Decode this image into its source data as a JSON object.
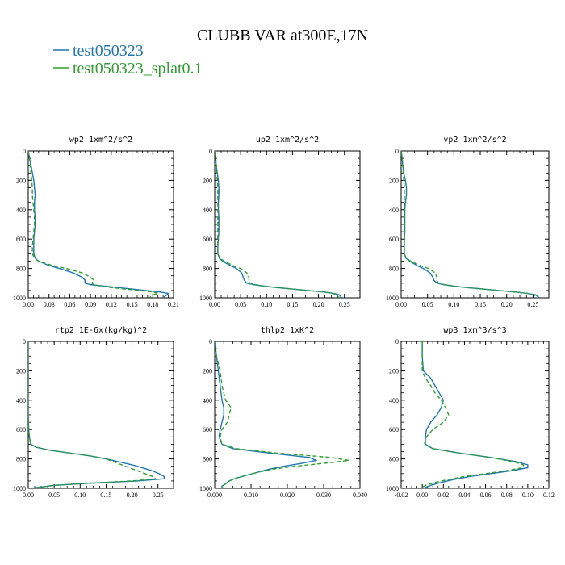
{
  "title": "CLUBB VAR at300E,17N",
  "legend": [
    {
      "label": "test050323",
      "color": "#1f77b4",
      "dash": "solid"
    },
    {
      "label": "test050323_splat0.1",
      "color": "#2ca02c",
      "dash": "dashed"
    }
  ],
  "chart_data": [
    {
      "type": "line",
      "title": "wp2   1xm^2/s^2",
      "xlim": [
        0,
        0.21
      ],
      "xticks": [
        0,
        0.03,
        0.06,
        0.09,
        0.12,
        0.15,
        0.18,
        0.21
      ],
      "xtick_labels": [
        "0.00",
        "0.03",
        "0.06",
        "0.09",
        "0.12",
        "0.15",
        "0.18",
        "0.21"
      ],
      "ylim": [
        0,
        1000
      ],
      "yticks": [
        0,
        200,
        400,
        600,
        800,
        1000
      ],
      "y": [
        0,
        50,
        100,
        150,
        200,
        250,
        300,
        350,
        400,
        450,
        500,
        550,
        600,
        650,
        700,
        730,
        750,
        780,
        800,
        830,
        860,
        880,
        900,
        910,
        920,
        930,
        940,
        950,
        960,
        970,
        980,
        1000
      ],
      "series": [
        {
          "name": "test050323",
          "values": [
            0.0,
            0.002,
            0.004,
            0.006,
            0.008,
            0.009,
            0.01,
            0.009,
            0.009,
            0.01,
            0.01,
            0.009,
            0.008,
            0.008,
            0.008,
            0.01,
            0.015,
            0.03,
            0.045,
            0.065,
            0.078,
            0.082,
            0.082,
            0.09,
            0.11,
            0.13,
            0.15,
            0.17,
            0.19,
            0.203,
            0.2,
            0.195
          ]
        },
        {
          "name": "test050323_splat0.1",
          "values": [
            0.0,
            0.002,
            0.003,
            0.004,
            0.005,
            0.006,
            0.006,
            0.007,
            0.008,
            0.009,
            0.009,
            0.008,
            0.007,
            0.006,
            0.006,
            0.009,
            0.015,
            0.035,
            0.055,
            0.078,
            0.09,
            0.095,
            0.092,
            0.095,
            0.105,
            0.12,
            0.14,
            0.16,
            0.18,
            0.188,
            0.18,
            0.175
          ]
        }
      ]
    },
    {
      "type": "line",
      "title": "up2   1xm^2/s^2",
      "xlim": [
        0,
        0.28
      ],
      "xticks": [
        0,
        0.05,
        0.1,
        0.15,
        0.2,
        0.25
      ],
      "xtick_labels": [
        "0.00",
        "0.05",
        "0.10",
        "0.15",
        "0.20",
        "0.25"
      ],
      "ylim": [
        0,
        1000
      ],
      "yticks": [
        0,
        200,
        400,
        600,
        800,
        1000
      ],
      "y": [
        0,
        50,
        100,
        150,
        200,
        250,
        300,
        350,
        400,
        450,
        500,
        550,
        600,
        650,
        700,
        730,
        750,
        780,
        800,
        830,
        860,
        880,
        900,
        910,
        920,
        930,
        940,
        950,
        960,
        970,
        980,
        1000
      ],
      "series": [
        {
          "name": "test050323",
          "values": [
            0.0,
            0.002,
            0.003,
            0.005,
            0.007,
            0.008,
            0.008,
            0.007,
            0.007,
            0.008,
            0.008,
            0.008,
            0.007,
            0.006,
            0.006,
            0.009,
            0.015,
            0.03,
            0.042,
            0.052,
            0.055,
            0.057,
            0.062,
            0.075,
            0.095,
            0.12,
            0.15,
            0.18,
            0.21,
            0.23,
            0.24,
            0.245
          ]
        },
        {
          "name": "test050323_splat0.1",
          "values": [
            0.0,
            0.002,
            0.003,
            0.004,
            0.005,
            0.006,
            0.006,
            0.006,
            0.006,
            0.006,
            0.006,
            0.006,
            0.006,
            0.006,
            0.006,
            0.01,
            0.018,
            0.035,
            0.05,
            0.062,
            0.066,
            0.066,
            0.067,
            0.078,
            0.095,
            0.12,
            0.15,
            0.18,
            0.21,
            0.228,
            0.235,
            0.24
          ]
        }
      ]
    },
    {
      "type": "line",
      "title": "vp2   1xm^2/s^2",
      "xlim": [
        0,
        0.28
      ],
      "xticks": [
        0,
        0.05,
        0.1,
        0.15,
        0.2,
        0.25
      ],
      "xtick_labels": [
        "0.00",
        "0.05",
        "0.10",
        "0.15",
        "0.20",
        "0.25"
      ],
      "ylim": [
        0,
        1000
      ],
      "yticks": [
        0,
        200,
        400,
        600,
        800,
        1000
      ],
      "y": [
        0,
        50,
        100,
        150,
        200,
        250,
        300,
        350,
        400,
        450,
        500,
        550,
        600,
        650,
        700,
        730,
        750,
        780,
        800,
        830,
        860,
        880,
        900,
        910,
        920,
        930,
        940,
        950,
        960,
        970,
        980,
        1000
      ],
      "series": [
        {
          "name": "test050323",
          "values": [
            0.0,
            0.002,
            0.003,
            0.005,
            0.008,
            0.01,
            0.01,
            0.008,
            0.007,
            0.007,
            0.007,
            0.007,
            0.006,
            0.006,
            0.006,
            0.009,
            0.016,
            0.03,
            0.042,
            0.055,
            0.06,
            0.062,
            0.068,
            0.08,
            0.1,
            0.125,
            0.155,
            0.185,
            0.215,
            0.24,
            0.255,
            0.262
          ]
        },
        {
          "name": "test050323_splat0.1",
          "values": [
            0.0,
            0.002,
            0.003,
            0.004,
            0.005,
            0.006,
            0.006,
            0.006,
            0.006,
            0.006,
            0.006,
            0.006,
            0.006,
            0.006,
            0.006,
            0.01,
            0.018,
            0.036,
            0.052,
            0.064,
            0.068,
            0.068,
            0.07,
            0.082,
            0.1,
            0.125,
            0.155,
            0.185,
            0.215,
            0.24,
            0.252,
            0.258
          ]
        }
      ]
    },
    {
      "type": "line",
      "title": "rtp2   1E-6x(kg/kg)^2",
      "xlim": [
        0,
        0.28
      ],
      "xticks": [
        0,
        0.05,
        0.1,
        0.15,
        0.2,
        0.25
      ],
      "xtick_labels": [
        "0.00",
        "0.05",
        "0.10",
        "0.15",
        "0.20",
        "0.25"
      ],
      "ylim": [
        0,
        1000
      ],
      "yticks": [
        0,
        200,
        400,
        600,
        800,
        1000
      ],
      "y": [
        0,
        100,
        200,
        300,
        400,
        500,
        600,
        650,
        700,
        720,
        740,
        760,
        780,
        800,
        820,
        840,
        860,
        880,
        900,
        920,
        935,
        950,
        965,
        980,
        1000
      ],
      "series": [
        {
          "name": "test050323",
          "values": [
            0.0,
            0.0,
            0.0,
            0.0,
            0.0,
            0.0,
            0.001,
            0.002,
            0.005,
            0.015,
            0.04,
            0.08,
            0.12,
            0.15,
            0.175,
            0.2,
            0.22,
            0.238,
            0.252,
            0.262,
            0.262,
            0.21,
            0.12,
            0.05,
            0.005
          ]
        },
        {
          "name": "test050323_splat0.1",
          "values": [
            0.0,
            0.0,
            0.0,
            0.0,
            0.0,
            0.0,
            0.001,
            0.002,
            0.005,
            0.015,
            0.04,
            0.08,
            0.12,
            0.15,
            0.165,
            0.18,
            0.195,
            0.21,
            0.225,
            0.24,
            0.245,
            0.2,
            0.12,
            0.05,
            0.005
          ]
        }
      ]
    },
    {
      "type": "line",
      "title": "thlp2   1xK^2",
      "xlim": [
        0,
        0.04
      ],
      "xticks": [
        0,
        0.01,
        0.02,
        0.03,
        0.04
      ],
      "xtick_labels": [
        "0.000",
        "0.010",
        "0.020",
        "0.030",
        "0.040"
      ],
      "ylim": [
        0,
        1000
      ],
      "yticks": [
        0,
        200,
        400,
        600,
        800,
        1000
      ],
      "y": [
        0,
        100,
        200,
        300,
        400,
        450,
        500,
        550,
        600,
        650,
        700,
        730,
        760,
        790,
        810,
        830,
        850,
        870,
        890,
        910,
        930,
        950,
        970,
        985,
        1000
      ],
      "series": [
        {
          "name": "test050323",
          "values": [
            0.0,
            0.0005,
            0.001,
            0.0015,
            0.002,
            0.0025,
            0.0025,
            0.002,
            0.0015,
            0.0012,
            0.002,
            0.005,
            0.015,
            0.026,
            0.028,
            0.024,
            0.019,
            0.015,
            0.012,
            0.009,
            0.006,
            0.004,
            0.003,
            0.002,
            0.002
          ]
        },
        {
          "name": "test050323_splat0.1",
          "values": [
            0.0,
            0.0005,
            0.0015,
            0.002,
            0.003,
            0.0045,
            0.004,
            0.0035,
            0.002,
            0.0015,
            0.002,
            0.006,
            0.017,
            0.032,
            0.037,
            0.03,
            0.022,
            0.016,
            0.012,
            0.009,
            0.006,
            0.004,
            0.003,
            0.002,
            0.002
          ]
        }
      ]
    },
    {
      "type": "line",
      "title": "wp3   1xm^3/s^3",
      "xlim": [
        -0.02,
        0.12
      ],
      "xticks": [
        -0.02,
        0,
        0.02,
        0.04,
        0.06,
        0.08,
        0.1,
        0.12
      ],
      "xtick_labels": [
        "-0.02",
        "0.00",
        "0.02",
        "0.04",
        "0.06",
        "0.08",
        "0.10",
        "0.12"
      ],
      "ylim": [
        0,
        1000
      ],
      "yticks": [
        0,
        200,
        400,
        600,
        800,
        1000
      ],
      "y": [
        0,
        100,
        200,
        250,
        300,
        350,
        400,
        450,
        500,
        550,
        600,
        650,
        700,
        730,
        760,
        790,
        820,
        840,
        860,
        880,
        900,
        920,
        940,
        960,
        980,
        1000
      ],
      "series": [
        {
          "name": "test050323",
          "values": [
            0.0,
            0.0,
            0.001,
            0.008,
            0.012,
            0.016,
            0.02,
            0.018,
            0.014,
            0.008,
            0.004,
            0.003,
            0.003,
            0.01,
            0.035,
            0.065,
            0.09,
            0.1,
            0.1,
            0.085,
            0.065,
            0.045,
            0.03,
            0.018,
            0.008,
            0.001
          ]
        },
        {
          "name": "test050323_splat0.1",
          "values": [
            0.0,
            0.0,
            0.0,
            0.003,
            0.008,
            0.012,
            0.018,
            0.022,
            0.025,
            0.02,
            0.01,
            0.004,
            0.002,
            0.01,
            0.035,
            0.065,
            0.087,
            0.096,
            0.095,
            0.08,
            0.06,
            0.04,
            0.025,
            0.012,
            0.003,
            -0.002
          ]
        }
      ]
    }
  ]
}
